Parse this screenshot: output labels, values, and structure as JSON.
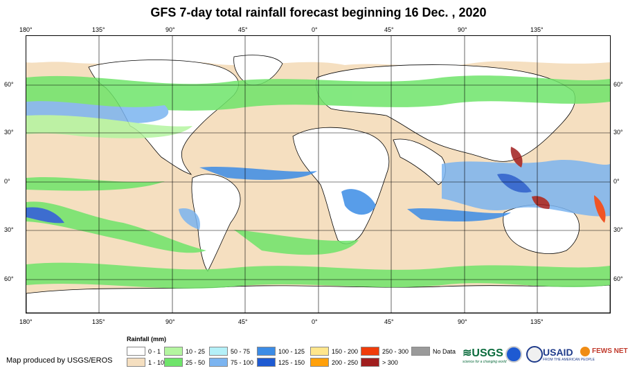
{
  "title": "GFS 7-day total rainfall forecast beginning 16 Dec. , 2020",
  "longitude_labels_top": [
    "180°",
    "135°",
    "90°",
    "45°",
    "0°",
    "45°",
    "90°",
    "135°"
  ],
  "longitude_labels_bottom": [
    "180°",
    "135°",
    "90°",
    "45°",
    "0°",
    "45°",
    "90°",
    "135°"
  ],
  "latitude_labels_left": [
    "60°",
    "30°",
    "0°",
    "30°",
    "60°"
  ],
  "latitude_labels_right": [
    "60°",
    "30°",
    "0°",
    "30°",
    "60°"
  ],
  "legend": {
    "title": "Rainfall (mm)",
    "items": [
      {
        "label": "0 - 1",
        "color": "#ffffff"
      },
      {
        "label": "1 - 10",
        "color": "#f5dfc0"
      },
      {
        "label": "10 - 25",
        "color": "#b4f5a0"
      },
      {
        "label": "25 - 50",
        "color": "#6ee46a"
      },
      {
        "label": "50 - 75",
        "color": "#b4f0f8"
      },
      {
        "label": "75 - 100",
        "color": "#7bb4f0"
      },
      {
        "label": "100 - 125",
        "color": "#3c8ce6"
      },
      {
        "label": "125 - 150",
        "color": "#1e5ad2"
      },
      {
        "label": "150 - 200",
        "color": "#ffe68c"
      },
      {
        "label": "200 - 250",
        "color": "#ffa00a"
      },
      {
        "label": "250 - 300",
        "color": "#f03c0a"
      },
      {
        "label": "> 300",
        "color": "#a01e1e"
      },
      {
        "label": "No Data",
        "color": "#9a9a9a"
      }
    ]
  },
  "credit": "Map produced by USGS/EROS",
  "logos": {
    "usgs": "USGS",
    "usgs_tagline": "science for a changing world",
    "usaid": "USAID",
    "usaid_tagline": "FROM THE AMERICAN PEOPLE",
    "fews": "FEWS NET"
  }
}
